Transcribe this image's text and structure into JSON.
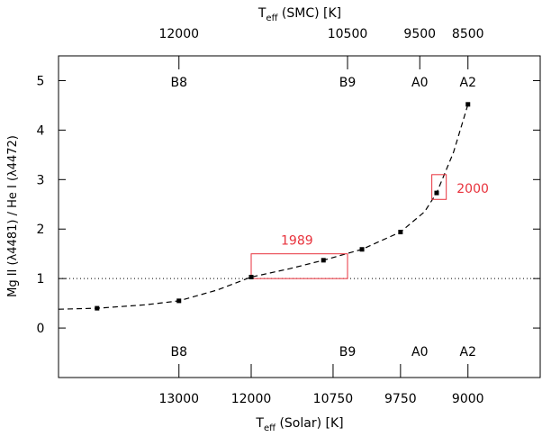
{
  "chart_data": {
    "type": "line",
    "xlabel_main": "T",
    "xlabel_sub": "eff",
    "xlabel_rest": " (Solar) [K]",
    "top_label_main": "T",
    "top_label_sub": "eff",
    "top_label_rest": " (SMC) [K]",
    "ylabel": "Mg II (λ4481) / He I (λ4472)",
    "xlim": [
      0,
      10
    ],
    "ylim": [
      -1,
      5.5
    ],
    "yticks": [
      0,
      1,
      2,
      3,
      4,
      5
    ],
    "bottom_ticks": [
      {
        "x": 2.5,
        "label": "13000"
      },
      {
        "x": 4.0,
        "label": "12000"
      },
      {
        "x": 5.7,
        "label": "10750"
      },
      {
        "x": 7.1,
        "label": "9750"
      },
      {
        "x": 8.5,
        "label": "9000"
      }
    ],
    "top_ticks": [
      {
        "x": 2.5,
        "label": "12000"
      },
      {
        "x": 6.0,
        "label": "10500"
      },
      {
        "x": 7.5,
        "label": "9500"
      },
      {
        "x": 8.5,
        "label": "8500"
      }
    ],
    "spectral_types": [
      {
        "x": 2.5,
        "label": "B8"
      },
      {
        "x": 6.0,
        "label": "B9"
      },
      {
        "x": 7.5,
        "label": "A0"
      },
      {
        "x": 8.5,
        "label": "A2"
      }
    ],
    "points": {
      "x": [
        0.8,
        2.5,
        4.0,
        5.5,
        6.3,
        7.1,
        7.85,
        8.5
      ],
      "y": [
        0.4,
        0.55,
        1.03,
        1.37,
        1.59,
        1.94,
        2.73,
        4.52
      ]
    },
    "curve": {
      "x": [
        0,
        0.8,
        1.8,
        2.5,
        3.3,
        4.0,
        4.8,
        5.5,
        6.3,
        7.1,
        7.6,
        7.85,
        8.2,
        8.5
      ],
      "y": [
        0.38,
        0.4,
        0.47,
        0.55,
        0.77,
        1.03,
        1.2,
        1.37,
        1.59,
        1.94,
        2.35,
        2.73,
        3.55,
        4.52
      ]
    },
    "reference_line": {
      "y": 1,
      "style": "dotted"
    },
    "annotations": [
      {
        "label": "1989",
        "x0": 4.0,
        "x1": 6.0,
        "y0": 1.0,
        "y1": 1.5,
        "label_x": 4.95,
        "label_y": 1.78
      },
      {
        "label": "2000",
        "x0": 7.75,
        "x1": 8.05,
        "y0": 2.6,
        "y1": 3.1,
        "label_x": 8.6,
        "label_y": 2.82
      }
    ],
    "colors": {
      "axes": "#000000",
      "annotation": "#e8323c"
    }
  }
}
